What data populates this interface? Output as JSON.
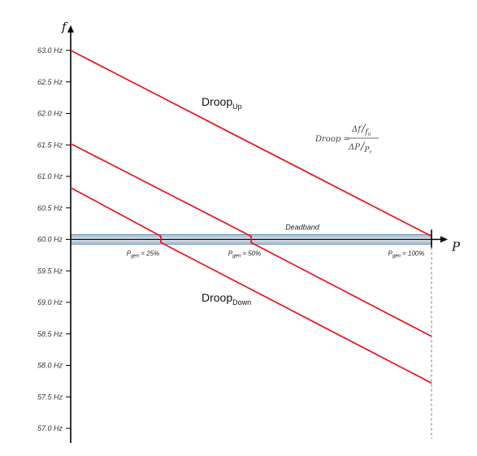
{
  "chart_data": {
    "type": "line",
    "y_axis_label": "f",
    "x_axis_label": "P",
    "y_ticks": [
      "63.0 Hz",
      "62.5 Hz",
      "62.0 Hz",
      "61.5 Hz",
      "61.0 Hz",
      "60.5 Hz",
      "60.0 Hz",
      "59.5 Hz",
      "59.0 Hz",
      "58.5 Hz",
      "58.0 Hz",
      "57.5 Hz",
      "57.0 Hz"
    ],
    "y_tick_values": [
      63.0,
      62.5,
      62.0,
      61.5,
      61.0,
      60.5,
      60.0,
      59.5,
      59.0,
      58.5,
      58.0,
      57.5,
      57.0
    ],
    "ylim": [
      56.85,
      63.35
    ],
    "xlim": [
      0,
      100
    ],
    "deadband": {
      "label": "Deadband",
      "y": 60.0
    },
    "pgen_labels": [
      {
        "prefix": "P",
        "sub": "gen",
        "suffix": " = 25%",
        "x": 25
      },
      {
        "prefix": "P",
        "sub": "gen",
        "suffix": " = 50%",
        "x": 50
      },
      {
        "prefix": "P",
        "sub": "gen",
        "suffix": " = 100%",
        "x": 100
      }
    ],
    "series": [
      {
        "color": "#e8141a",
        "points": [
          [
            0,
            63.0
          ],
          [
            100,
            60.05
          ]
        ]
      },
      {
        "color": "#e8141a",
        "points": [
          [
            0,
            61.52
          ],
          [
            50,
            60.05
          ],
          [
            50,
            59.95
          ],
          [
            100,
            58.46
          ]
        ]
      },
      {
        "color": "#e8141a",
        "points": [
          [
            0,
            60.82
          ],
          [
            25,
            60.05
          ],
          [
            25,
            59.95
          ],
          [
            100,
            57.72
          ]
        ]
      }
    ],
    "annotations": {
      "droop_up": {
        "main": "Droop",
        "sub": "Up"
      },
      "droop_down": {
        "main": "Droop",
        "sub": "Down"
      },
      "formula": {
        "lhs": "Droop =",
        "num_delta": "Δf",
        "num_den": "f",
        "num_den_sub": "n",
        "den_delta": "ΔP",
        "den_den": "P",
        "den_den_sub": "r"
      }
    },
    "colors": {
      "line": "#e8141a",
      "deadband": "#a8c6df",
      "axis": "#000000"
    }
  }
}
